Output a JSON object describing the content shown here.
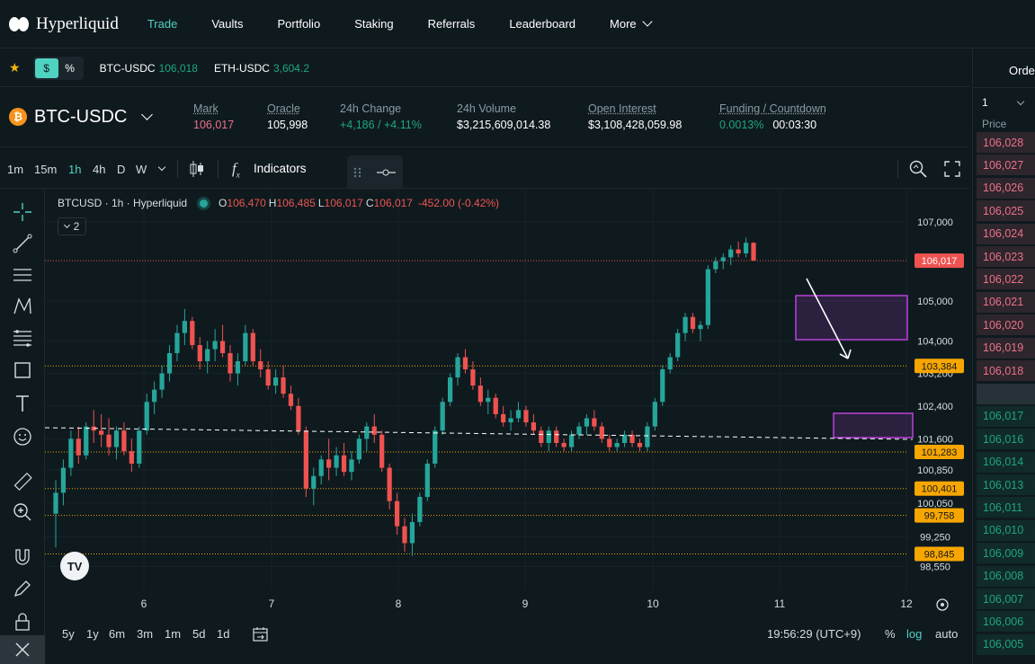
{
  "nav": {
    "logo_text": "Hyperliquid",
    "items": [
      {
        "label": "Trade",
        "active": true
      },
      {
        "label": "Vaults",
        "active": false
      },
      {
        "label": "Portfolio",
        "active": false
      },
      {
        "label": "Staking",
        "active": false
      },
      {
        "label": "Referrals",
        "active": false
      },
      {
        "label": "Leaderboard",
        "active": false
      },
      {
        "label": "More",
        "active": false
      }
    ]
  },
  "favorites": {
    "toggle": [
      "$",
      "%"
    ],
    "items": [
      {
        "pair": "BTC-USDC",
        "value": "106,018"
      },
      {
        "pair": "ETH-USDC",
        "value": "3,604.2"
      }
    ]
  },
  "order_panel": {
    "tab": "Order",
    "size_select": "1",
    "price_header": "Price",
    "asks": [
      "106,028",
      "106,027",
      "106,026",
      "106,025",
      "106,024",
      "106,023",
      "106,022",
      "106,021",
      "106,020",
      "106,019",
      "106,018"
    ],
    "bids": [
      "106,017",
      "106,016",
      "106,014",
      "106,013",
      "106,011",
      "106,010",
      "106,009",
      "106,008",
      "106,007",
      "106,006",
      "106,005"
    ]
  },
  "market": {
    "coin_symbol": "₿",
    "pair": "BTC-USDC",
    "stats": [
      {
        "label": "Mark",
        "value": "106,017",
        "color": "red",
        "underline": true
      },
      {
        "label": "Oracle",
        "value": "105,998",
        "color": "white",
        "underline": true
      },
      {
        "label": "24h Change",
        "value": "+4,186 / +4.11%",
        "color": "green",
        "underline": false
      },
      {
        "label": "24h Volume",
        "value": "$3,215,609,014.38",
        "color": "white",
        "underline": false
      },
      {
        "label": "Open Interest",
        "value": "$3,108,428,059.98",
        "color": "white",
        "underline": true
      },
      {
        "label": "Funding / Countdown",
        "value": "0.0013%",
        "value2": "00:03:30",
        "color": "green",
        "underline": true
      }
    ]
  },
  "chart_toolbar": {
    "timeframes": [
      "1m",
      "15m",
      "1h",
      "4h",
      "D",
      "W"
    ],
    "selected": "1h",
    "indicators_label": "Indicators"
  },
  "chart_data": {
    "type": "candlestick",
    "symbol_label": "BTCUSD · 1h · Hyperliquid",
    "ohlc": {
      "o_label": "O",
      "o": "106,470",
      "h_label": "H",
      "h": "106,485",
      "l_label": "L",
      "l": "106,017",
      "c_label": "C",
      "c": "106,017",
      "change": "-452.00 (-0.42%)"
    },
    "indicator_count": "2",
    "x_ticks": [
      "6",
      "7",
      "8",
      "9",
      "10",
      "11",
      "12"
    ],
    "y_ticks": [
      "107,000",
      "105,000",
      "104,000",
      "103,200",
      "102,400",
      "101,600",
      "100,850",
      "100,050",
      "99,250",
      "98,550"
    ],
    "last_price": "106,017",
    "horizontal_levels": [
      "103,384",
      "101,283",
      "100,401",
      "99,758",
      "98,845"
    ],
    "y_scale": "log",
    "ylim": [
      98200,
      107600
    ],
    "candles": [
      [
        99800,
        100600,
        99000,
        100300
      ],
      [
        100300,
        101100,
        100000,
        100900
      ],
      [
        100900,
        101800,
        100700,
        101600
      ],
      [
        101600,
        101900,
        101000,
        101200
      ],
      [
        101200,
        102000,
        101100,
        101900
      ],
      [
        101900,
        102300,
        101500,
        101800
      ],
      [
        101800,
        102200,
        101400,
        101700
      ],
      [
        101700,
        102100,
        101200,
        101400
      ],
      [
        101400,
        101900,
        101100,
        101800
      ],
      [
        101800,
        102000,
        101200,
        101300
      ],
      [
        101300,
        101600,
        100800,
        101000
      ],
      [
        101000,
        101900,
        100900,
        101800
      ],
      [
        101800,
        102700,
        101700,
        102500
      ],
      [
        102500,
        103000,
        102200,
        102800
      ],
      [
        102800,
        103400,
        102600,
        103200
      ],
      [
        103200,
        103900,
        103000,
        103700
      ],
      [
        103700,
        104400,
        103500,
        104200
      ],
      [
        104200,
        104800,
        103900,
        104500
      ],
      [
        104500,
        104600,
        103800,
        103900
      ],
      [
        103900,
        104100,
        103300,
        103500
      ],
      [
        103500,
        104000,
        103200,
        103800
      ],
      [
        103800,
        104300,
        103500,
        104000
      ],
      [
        104000,
        104400,
        103600,
        103700
      ],
      [
        103700,
        103900,
        103000,
        103200
      ],
      [
        103200,
        103700,
        102900,
        103500
      ],
      [
        103500,
        104400,
        103400,
        104200
      ],
      [
        104200,
        104300,
        103400,
        103500
      ],
      [
        103500,
        103800,
        103100,
        103300
      ],
      [
        103300,
        103500,
        102800,
        102900
      ],
      [
        102900,
        103300,
        102700,
        103100
      ],
      [
        103100,
        103400,
        102600,
        102700
      ],
      [
        102700,
        102900,
        102300,
        102400
      ],
      [
        102400,
        102600,
        101700,
        101800
      ],
      [
        101800,
        101900,
        100200,
        100400
      ],
      [
        100400,
        100900,
        100000,
        100700
      ],
      [
        100700,
        101200,
        100500,
        101100
      ],
      [
        101100,
        101600,
        100600,
        100900
      ],
      [
        100900,
        101400,
        100700,
        101200
      ],
      [
        101200,
        101500,
        100700,
        100800
      ],
      [
        100800,
        101300,
        100600,
        101100
      ],
      [
        101100,
        101700,
        101000,
        101600
      ],
      [
        101600,
        102000,
        101300,
        101900
      ],
      [
        101900,
        102200,
        101500,
        101700
      ],
      [
        101700,
        101800,
        100800,
        100900
      ],
      [
        100900,
        101000,
        99900,
        100100
      ],
      [
        100100,
        100300,
        99300,
        99500
      ],
      [
        99500,
        99700,
        98900,
        99100
      ],
      [
        99100,
        99800,
        98800,
        99600
      ],
      [
        99600,
        100300,
        99500,
        100200
      ],
      [
        100200,
        101100,
        100100,
        101000
      ],
      [
        101000,
        101900,
        100900,
        101800
      ],
      [
        101800,
        102600,
        101700,
        102500
      ],
      [
        102500,
        103200,
        102400,
        103100
      ],
      [
        103100,
        103700,
        102900,
        103600
      ],
      [
        103600,
        103800,
        103200,
        103300
      ],
      [
        103300,
        103500,
        102800,
        102900
      ],
      [
        102900,
        103100,
        102400,
        102500
      ],
      [
        102500,
        102800,
        102200,
        102600
      ],
      [
        102600,
        102700,
        102100,
        102200
      ],
      [
        102200,
        102400,
        101900,
        102000
      ],
      [
        102000,
        102300,
        101800,
        102100
      ],
      [
        102100,
        102500,
        102000,
        102300
      ],
      [
        102300,
        102400,
        101900,
        102000
      ],
      [
        102000,
        102200,
        101700,
        101800
      ],
      [
        101800,
        101900,
        101400,
        101500
      ],
      [
        101500,
        101900,
        101300,
        101800
      ],
      [
        101800,
        101900,
        101400,
        101500
      ],
      [
        101500,
        101600,
        101300,
        101400
      ],
      [
        101400,
        101800,
        101300,
        101700
      ],
      [
        101700,
        102000,
        101600,
        101900
      ],
      [
        101900,
        102200,
        101700,
        102100
      ],
      [
        102100,
        102300,
        101800,
        101900
      ],
      [
        101900,
        102000,
        101500,
        101600
      ],
      [
        101600,
        101700,
        101300,
        101400
      ],
      [
        101400,
        101600,
        101300,
        101500
      ],
      [
        101500,
        101800,
        101400,
        101700
      ],
      [
        101700,
        101800,
        101400,
        101500
      ],
      [
        101500,
        101600,
        101300,
        101400
      ],
      [
        101400,
        102000,
        101300,
        101900
      ],
      [
        101900,
        102600,
        101800,
        102500
      ],
      [
        102500,
        103400,
        102400,
        103300
      ],
      [
        103300,
        103700,
        103200,
        103600
      ],
      [
        103600,
        104300,
        103500,
        104200
      ],
      [
        104200,
        104700,
        104000,
        104600
      ],
      [
        104600,
        104700,
        104200,
        104300
      ],
      [
        104300,
        104500,
        104000,
        104400
      ],
      [
        104400,
        105900,
        104300,
        105800
      ],
      [
        105800,
        106100,
        105700,
        106000
      ],
      [
        106000,
        106200,
        105800,
        106100
      ],
      [
        106100,
        106400,
        105900,
        106300
      ],
      [
        106300,
        106500,
        106100,
        106200
      ],
      [
        106200,
        106600,
        106100,
        106470
      ],
      [
        106470,
        106485,
        106017,
        106017
      ]
    ],
    "annotations": [
      {
        "type": "rectangle",
        "color": "#b03fd0"
      },
      {
        "type": "rectangle",
        "color": "#b03fd0"
      },
      {
        "type": "arrow",
        "color": "#ffffff"
      },
      {
        "type": "trendline",
        "style": "dashed",
        "color": "#ffffff"
      }
    ]
  },
  "bottom": {
    "ranges": [
      "5y",
      "1y",
      "6m",
      "3m",
      "1m",
      "5d",
      "1d"
    ],
    "clock": "19:56:29 (UTC+9)",
    "pct_label": "%",
    "log_label": "log",
    "auto_label": "auto"
  },
  "colors": {
    "accent": "#50d2c1",
    "up": "#26a69a",
    "down": "#ef5350",
    "level": "#f7a600"
  }
}
